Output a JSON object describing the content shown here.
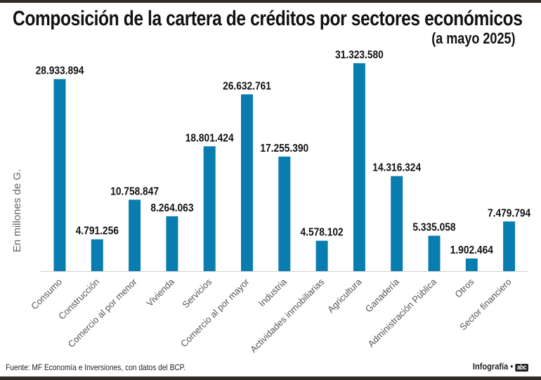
{
  "header": {
    "title": "Composición de la cartera de créditos por sectores económicos",
    "subtitle": "(a mayo 2025)"
  },
  "footer": {
    "source": "Fuente: MF Economía e Inversiones, con datos del BCP.",
    "credit": "Infografía •",
    "brand": "abc"
  },
  "chart_data": {
    "type": "bar",
    "title": "Composición de la cartera de créditos por sectores económicos",
    "subtitle": "(a mayo 2025)",
    "xlabel": "",
    "ylabel": "En millones de G.",
    "ylim": [
      0,
      31323580
    ],
    "grid": false,
    "bar_color": "#0A7DB0",
    "categories": [
      "Consumo",
      "Construcción",
      "Comercio al por menor",
      "Vivienda",
      "Servicios",
      "Comercio al por mayor",
      "Industria",
      "Actividades inmobiliarias",
      "Agricultura",
      "Ganadería",
      "Administración Pública",
      "Otros",
      "Sector financiero"
    ],
    "values": [
      28933894,
      4791256,
      10758847,
      8264063,
      18801424,
      26632761,
      17255390,
      4578102,
      31323580,
      14316324,
      5335058,
      1902464,
      7479794
    ],
    "labels": [
      "28.933.894",
      "4.791.256",
      "10.758.847",
      "8.264.063",
      "18.801.424",
      "26.632.761",
      "17.255.390",
      "4.578.102",
      "31.323.580",
      "14.316.324",
      "5.335.058",
      "1.902.464",
      "7.479.794"
    ]
  }
}
